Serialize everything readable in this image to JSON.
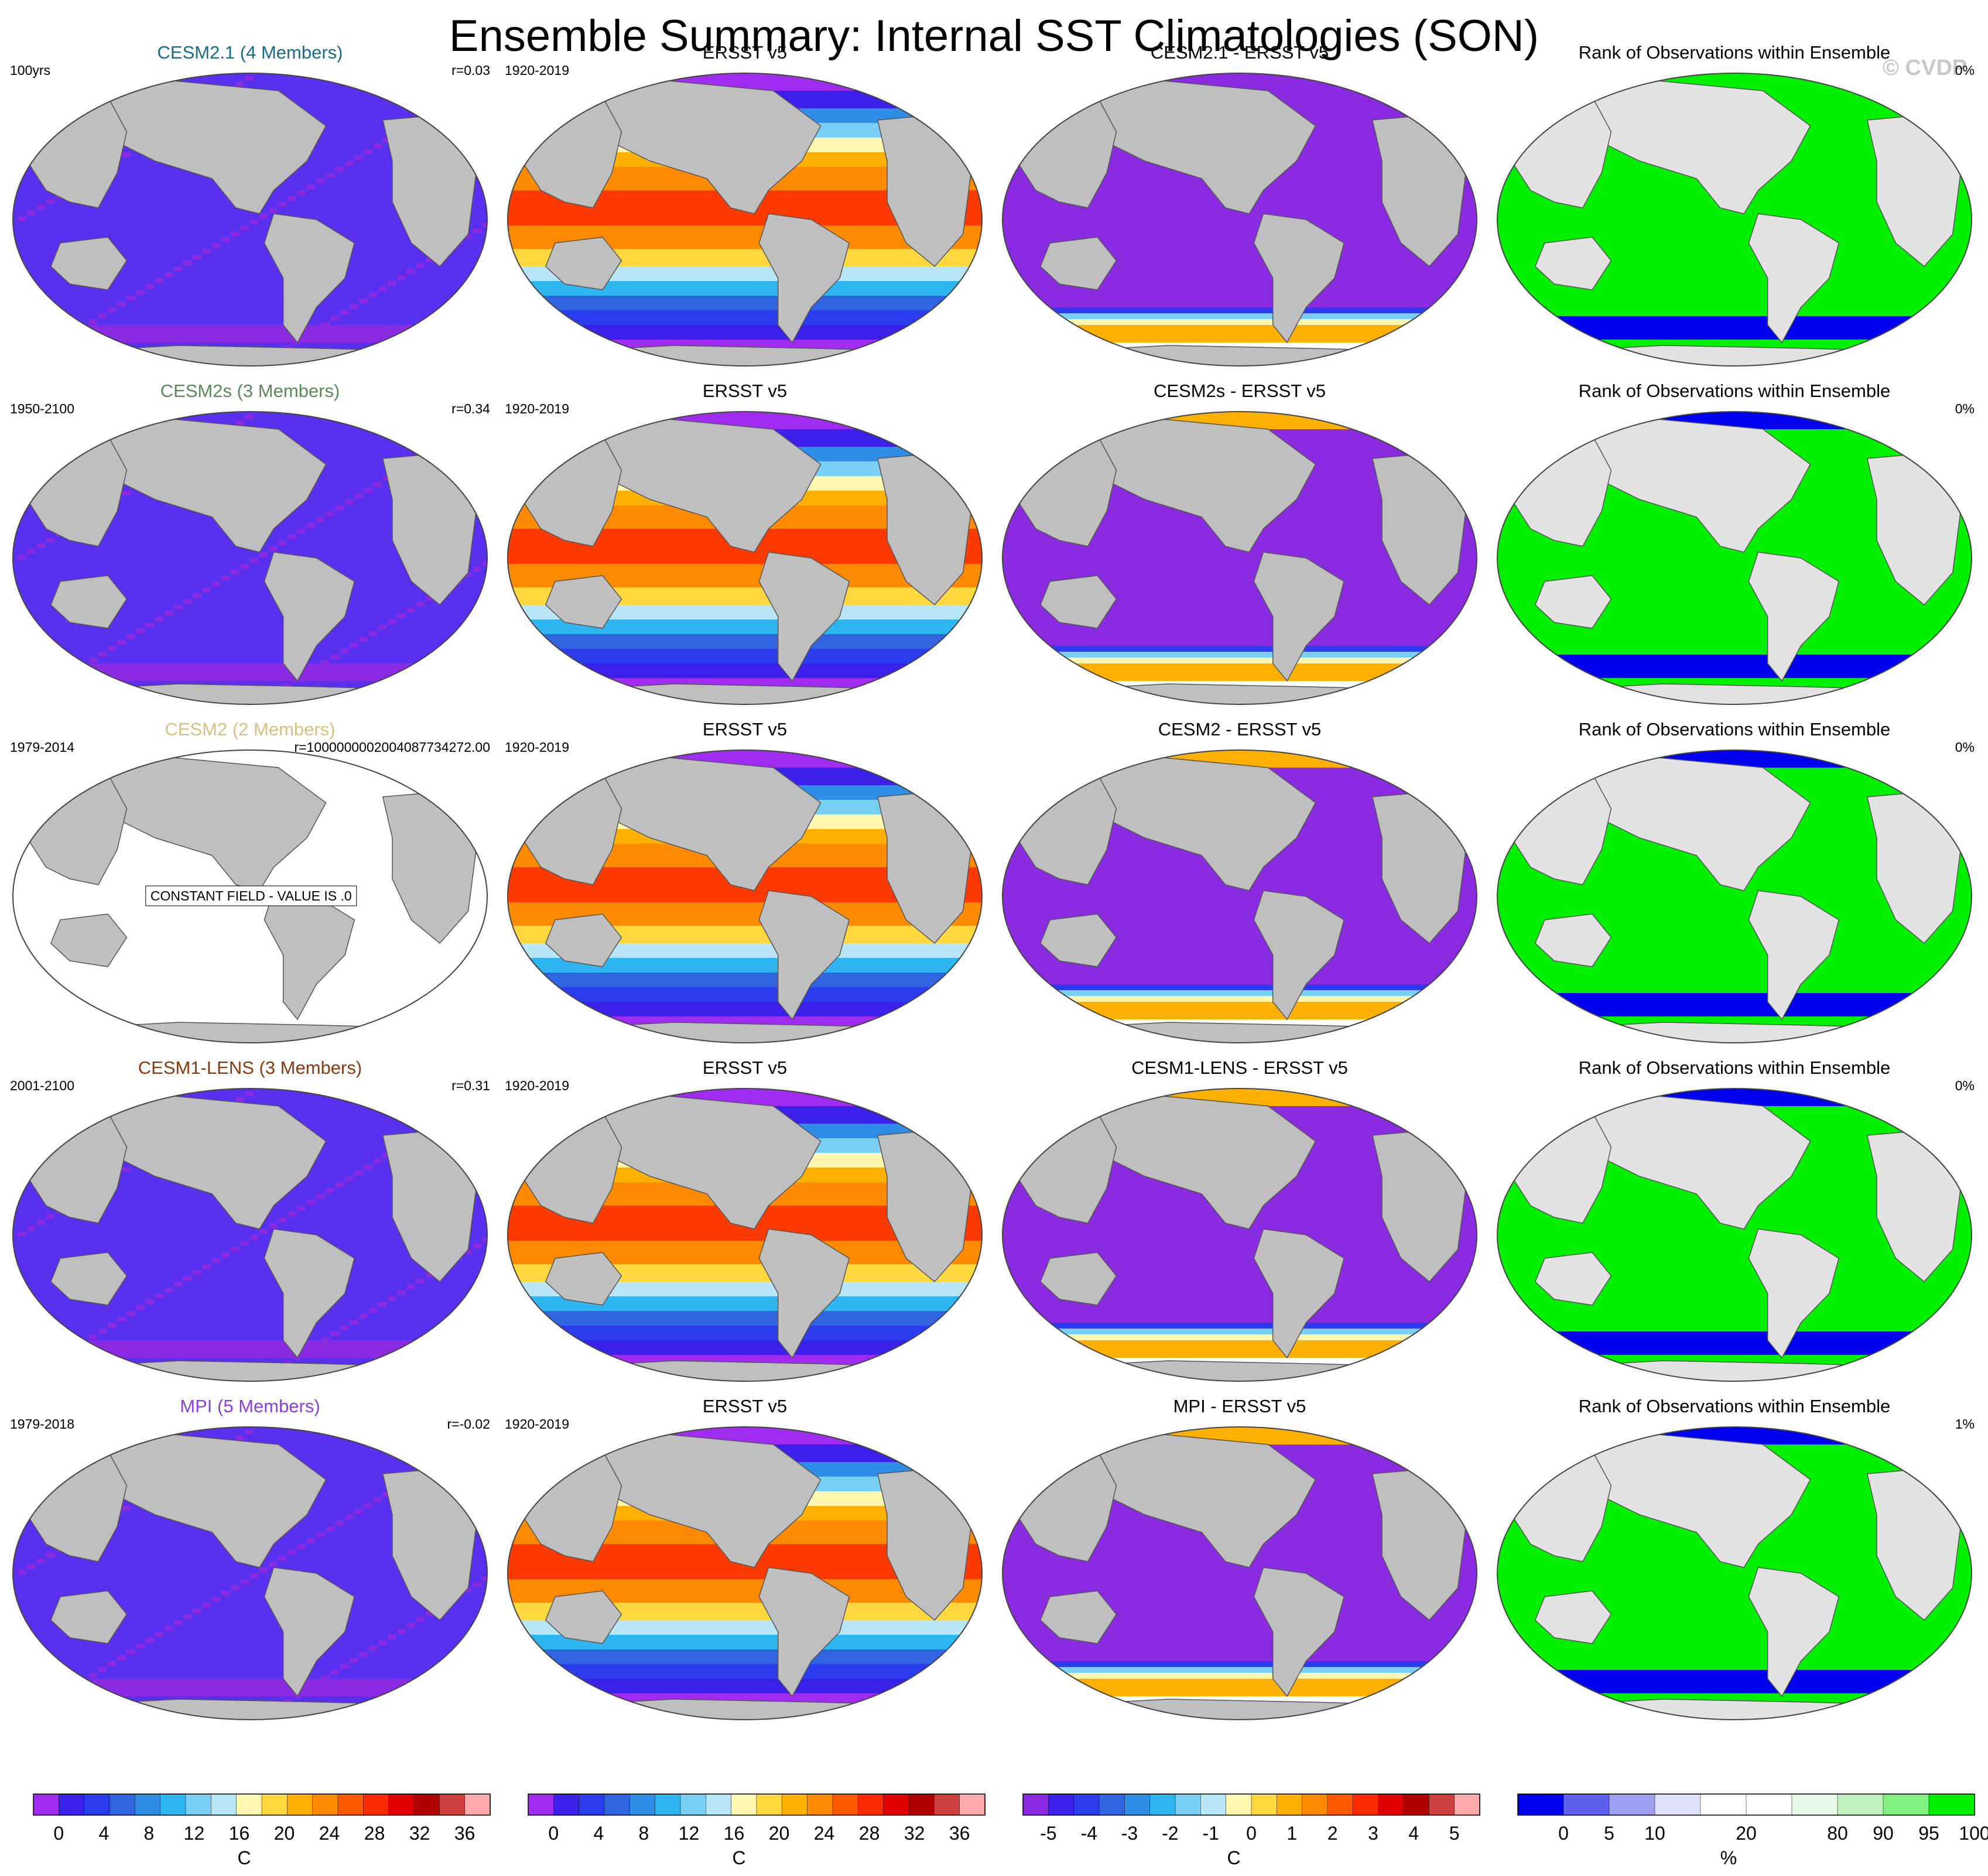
{
  "title": "Ensemble Summary: Internal SST Climatologies (SON)",
  "watermark": "© CVDP",
  "colors": {
    "land": "#bfbfbf",
    "land_light": "#e2e2e2",
    "model_field": "#8a2be2",
    "model_field_alt": "#5a30f0",
    "rank_green": "#00f000",
    "rank_blue": "#0000f0"
  },
  "sst_palette": [
    "#9f2cf0",
    "#3a20e8",
    "#2b3cef",
    "#3064e0",
    "#2e8ee8",
    "#2eb6f0",
    "#7ad0f4",
    "#b9e6f6",
    "#fff7b0",
    "#ffd840",
    "#ffb000",
    "#ff8a00",
    "#ff5a00",
    "#ff2a00",
    "#e00000",
    "#b00000",
    "#d04040",
    "#ffaaaa"
  ],
  "diff_palette": [
    "#8a2be2",
    "#3a20e8",
    "#2b3cef",
    "#3064e0",
    "#2e8ee8",
    "#2eb6f0",
    "#7ad0f4",
    "#b9e6f6",
    "#fff7b0",
    "#ffd840",
    "#ffb000",
    "#ff8a00",
    "#ff5a00",
    "#ff2a00",
    "#e00000",
    "#b00000",
    "#d04040",
    "#ffaaaa"
  ],
  "rank_palette": [
    "#0000f0",
    "#6060f0",
    "#a0a0f0",
    "#e0e0fa",
    "#ffffff",
    "#ffffff",
    "#e6f8e6",
    "#c0f0c0",
    "#80f080",
    "#00f000"
  ],
  "chart_data": [
    {
      "type": "heatmap",
      "rows": [
        {
          "panels": [
            {
              "kind": "model",
              "title": "CESM2.1 (4 Members)",
              "title_color": "#1a6a8a",
              "left_label": "100yrs",
              "right_label": "r=0.03"
            },
            {
              "kind": "obs",
              "title": "ERSST v5",
              "title_color": "#000000",
              "left_label": "1920-2019",
              "right_label": ""
            },
            {
              "kind": "diff",
              "title": "CESM2.1 - ERSST v5",
              "title_color": "#000000",
              "left_label": "",
              "right_label": ""
            },
            {
              "kind": "rank",
              "title": "Rank of Observations within Ensemble",
              "title_color": "#000000",
              "left_label": "",
              "right_label": "0%"
            }
          ]
        },
        {
          "panels": [
            {
              "kind": "model",
              "title": "CESM2s (3 Members)",
              "title_color": "#5a8a5a",
              "left_label": "1950-2100",
              "right_label": "r=0.34"
            },
            {
              "kind": "obs",
              "title": "ERSST v5",
              "title_color": "#000000",
              "left_label": "1920-2019",
              "right_label": ""
            },
            {
              "kind": "diff",
              "title": "CESM2s - ERSST v5",
              "title_color": "#000000",
              "left_label": "",
              "right_label": ""
            },
            {
              "kind": "rank",
              "title": "Rank of Observations within Ensemble",
              "title_color": "#000000",
              "left_label": "",
              "right_label": "0%"
            }
          ]
        },
        {
          "panels": [
            {
              "kind": "constant",
              "title": "CESM2 (2 Members)",
              "title_color": "#d8c080",
              "left_label": "1979-2014",
              "right_label": "r=1000000002004087734272.00",
              "center_note": "CONSTANT FIELD - VALUE IS .0"
            },
            {
              "kind": "obs",
              "title": "ERSST v5",
              "title_color": "#000000",
              "left_label": "1920-2019",
              "right_label": ""
            },
            {
              "kind": "diff",
              "title": "CESM2 - ERSST v5",
              "title_color": "#000000",
              "left_label": "",
              "right_label": ""
            },
            {
              "kind": "rank",
              "title": "Rank of Observations within Ensemble",
              "title_color": "#000000",
              "left_label": "",
              "right_label": "0%"
            }
          ]
        },
        {
          "panels": [
            {
              "kind": "model",
              "title": "CESM1-LENS (3 Members)",
              "title_color": "#8a3a10",
              "left_label": "2001-2100",
              "right_label": "r=0.31"
            },
            {
              "kind": "obs",
              "title": "ERSST v5",
              "title_color": "#000000",
              "left_label": "1920-2019",
              "right_label": ""
            },
            {
              "kind": "diff",
              "title": "CESM1-LENS - ERSST v5",
              "title_color": "#000000",
              "left_label": "",
              "right_label": ""
            },
            {
              "kind": "rank",
              "title": "Rank of Observations within Ensemble",
              "title_color": "#000000",
              "left_label": "",
              "right_label": "0%"
            }
          ]
        },
        {
          "panels": [
            {
              "kind": "model",
              "title": "MPI (5 Members)",
              "title_color": "#8a40e0",
              "left_label": "1979-2018",
              "right_label": "r=-0.02"
            },
            {
              "kind": "obs",
              "title": "ERSST v5",
              "title_color": "#000000",
              "left_label": "1920-2019",
              "right_label": ""
            },
            {
              "kind": "diff",
              "title": "MPI - ERSST v5",
              "title_color": "#000000",
              "left_label": "",
              "right_label": ""
            },
            {
              "kind": "rank",
              "title": "Rank of Observations within Ensemble",
              "title_color": "#000000",
              "left_label": "",
              "right_label": "1%"
            }
          ]
        }
      ],
      "colorbars": [
        {
          "name": "sst",
          "ticks": [
            "0",
            "4",
            "8",
            "12",
            "16",
            "20",
            "24",
            "28",
            "32",
            "36"
          ],
          "unit": "C"
        },
        {
          "name": "sst",
          "ticks": [
            "0",
            "4",
            "8",
            "12",
            "16",
            "20",
            "24",
            "28",
            "32",
            "36"
          ],
          "unit": "C"
        },
        {
          "name": "diff",
          "ticks": [
            "-5",
            "-4",
            "-3",
            "-2",
            "-1",
            "0",
            "1",
            "2",
            "3",
            "4",
            "5"
          ],
          "unit": "C"
        },
        {
          "name": "rank",
          "ticks": [
            "0",
            "5",
            "10",
            "20",
            "80",
            "90",
            "95",
            "100"
          ],
          "unit": "%"
        }
      ]
    }
  ]
}
